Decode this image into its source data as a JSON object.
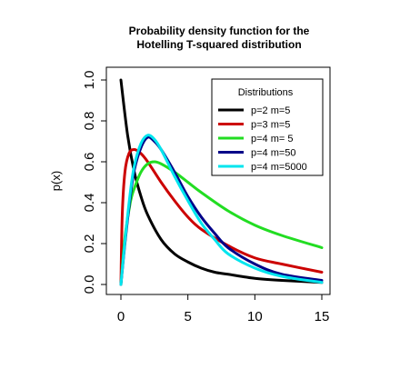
{
  "chart_data": {
    "type": "line",
    "title_line1": "Probability density function for the",
    "title_line2": "Hotelling T-squared distribution",
    "xlabel": "",
    "ylabel": "p(x)",
    "xlim": [
      0,
      15
    ],
    "ylim": [
      0,
      1
    ],
    "x_ticks": [
      0,
      5,
      10,
      15
    ],
    "x_tick_labels": [
      "0",
      "5",
      "10",
      "15"
    ],
    "y_ticks": [
      0,
      0.2,
      0.4,
      0.6,
      0.8,
      1.0
    ],
    "y_tick_labels": [
      "0.0",
      "0.2",
      "0.4",
      "0.6",
      "0.8",
      "1.0"
    ],
    "grid": false,
    "legend_title": "Distributions",
    "legend_position": "top-right",
    "series": [
      {
        "name": "p=2 m=5",
        "color": "#000000",
        "x": [
          0,
          0.5,
          1,
          1.5,
          2,
          3,
          4,
          5,
          6,
          7,
          8,
          10,
          12,
          15
        ],
        "y": [
          1.0,
          0.73,
          0.55,
          0.43,
          0.34,
          0.22,
          0.15,
          0.11,
          0.08,
          0.06,
          0.05,
          0.03,
          0.02,
          0.01
        ]
      },
      {
        "name": "p=3 m=5",
        "color": "#cc0000",
        "x": [
          0,
          0.1,
          0.3,
          0.6,
          1,
          1.5,
          2,
          3,
          4,
          5,
          6,
          8,
          10,
          12,
          15
        ],
        "y": [
          0,
          0.34,
          0.55,
          0.64,
          0.66,
          0.64,
          0.6,
          0.5,
          0.41,
          0.33,
          0.27,
          0.19,
          0.13,
          0.1,
          0.06
        ]
      },
      {
        "name": "p=4 m= 5",
        "color": "#22dd22",
        "x": [
          0,
          0.3,
          0.7,
          1,
          1.5,
          2,
          2.5,
          3,
          4,
          5,
          6,
          8,
          10,
          12,
          15
        ],
        "y": [
          0,
          0.23,
          0.4,
          0.47,
          0.55,
          0.59,
          0.6,
          0.59,
          0.55,
          0.5,
          0.45,
          0.36,
          0.29,
          0.24,
          0.18
        ]
      },
      {
        "name": "p=4 m=50",
        "color": "#000088",
        "x": [
          0,
          0.3,
          0.7,
          1,
          1.5,
          2,
          2.5,
          3,
          4,
          5,
          6,
          7,
          8,
          10,
          12,
          15
        ],
        "y": [
          0,
          0.2,
          0.43,
          0.56,
          0.67,
          0.72,
          0.7,
          0.66,
          0.55,
          0.43,
          0.33,
          0.25,
          0.18,
          0.1,
          0.05,
          0.02
        ]
      },
      {
        "name": "p=4 m=5000",
        "color": "#00e5ee",
        "x": [
          0,
          0.3,
          0.7,
          1,
          1.5,
          2,
          2.5,
          3,
          4,
          5,
          6,
          7,
          8,
          10,
          12,
          15
        ],
        "y": [
          0,
          0.21,
          0.45,
          0.58,
          0.69,
          0.73,
          0.71,
          0.66,
          0.53,
          0.41,
          0.3,
          0.22,
          0.15,
          0.08,
          0.04,
          0.01
        ]
      }
    ]
  }
}
